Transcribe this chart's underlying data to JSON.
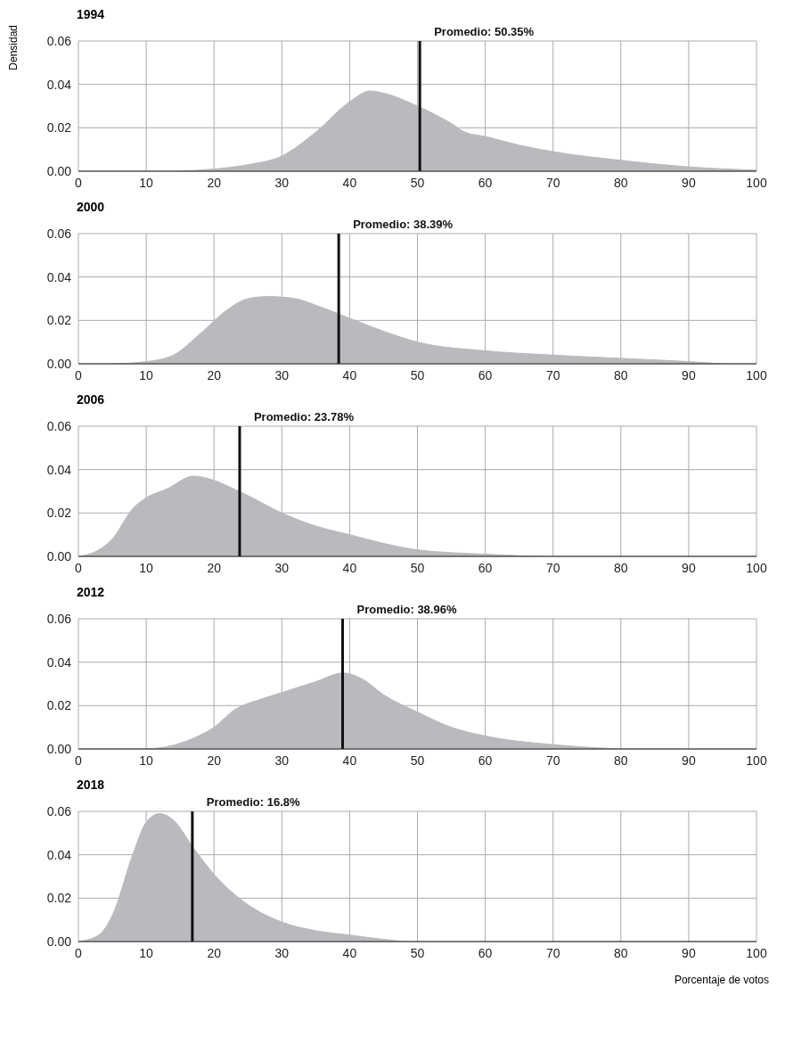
{
  "chart_data": [
    {
      "type": "area",
      "title": "1994",
      "ylabel": "Densidad",
      "color": "#b9babe",
      "grid": true,
      "xlim": [
        0,
        100
      ],
      "xticks": [
        0,
        10,
        20,
        30,
        40,
        50,
        60,
        70,
        80,
        90,
        100
      ],
      "ylim": [
        0,
        0.06
      ],
      "yticks": [
        {
          "value": 0,
          "label": "0.00"
        },
        {
          "value": 0.02,
          "label": "0.02"
        },
        {
          "value": 0.04,
          "label": "0.04"
        },
        {
          "value": 0.06,
          "label": "0.06"
        }
      ],
      "x": [
        15,
        20,
        25,
        30,
        35,
        40,
        43,
        45,
        50,
        55,
        57,
        60,
        65,
        70,
        80,
        90,
        100
      ],
      "values": [
        0,
        0.001,
        0.003,
        0.007,
        0.018,
        0.032,
        0.037,
        0.036,
        0.03,
        0.022,
        0.018,
        0.016,
        0.012,
        0.009,
        0.005,
        0.002,
        0.0005
      ],
      "ref_lines": [
        {
          "axis": "x",
          "value": 50.35,
          "label": "Promedio: 50.35%",
          "color": "#111111"
        }
      ]
    },
    {
      "type": "area",
      "title": "2000",
      "color": "#b9babe",
      "grid": true,
      "xlim": [
        0,
        100
      ],
      "xticks": [
        0,
        10,
        20,
        30,
        40,
        50,
        60,
        70,
        80,
        90,
        100
      ],
      "ylim": [
        0,
        0.06
      ],
      "yticks": [
        {
          "value": 0,
          "label": "0.00"
        },
        {
          "value": 0.02,
          "label": "0.02"
        },
        {
          "value": 0.04,
          "label": "0.04"
        },
        {
          "value": 0.06,
          "label": "0.06"
        }
      ],
      "x": [
        5,
        10,
        14,
        18,
        22,
        25,
        28,
        32,
        35,
        40,
        45,
        50,
        60,
        70,
        80,
        90,
        95
      ],
      "values": [
        0,
        0.001,
        0.004,
        0.014,
        0.025,
        0.03,
        0.031,
        0.03,
        0.027,
        0.021,
        0.015,
        0.01,
        0.006,
        0.004,
        0.0025,
        0.001,
        0
      ],
      "ref_lines": [
        {
          "axis": "x",
          "value": 38.39,
          "label": "Promedio: 38.39%",
          "color": "#111111"
        }
      ]
    },
    {
      "type": "area",
      "title": "2006",
      "color": "#b9babe",
      "grid": true,
      "xlim": [
        0,
        100
      ],
      "xticks": [
        0,
        10,
        20,
        30,
        40,
        50,
        60,
        70,
        80,
        90,
        100
      ],
      "ylim": [
        0,
        0.06
      ],
      "yticks": [
        {
          "value": 0,
          "label": "0.00"
        },
        {
          "value": 0.02,
          "label": "0.02"
        },
        {
          "value": 0.04,
          "label": "0.04"
        },
        {
          "value": 0.06,
          "label": "0.06"
        }
      ],
      "x": [
        0,
        3,
        5,
        8,
        10,
        13,
        17,
        20,
        23,
        25,
        30,
        35,
        40,
        45,
        50,
        60,
        68
      ],
      "values": [
        0,
        0.003,
        0.008,
        0.022,
        0.027,
        0.031,
        0.037,
        0.035,
        0.031,
        0.028,
        0.02,
        0.014,
        0.01,
        0.006,
        0.003,
        0.001,
        0
      ],
      "ref_lines": [
        {
          "axis": "x",
          "value": 23.78,
          "label": "Promedio: 23.78%",
          "color": "#111111"
        }
      ]
    },
    {
      "type": "area",
      "title": "2012",
      "color": "#b9babe",
      "grid": true,
      "xlim": [
        0,
        100
      ],
      "xticks": [
        0,
        10,
        20,
        30,
        40,
        50,
        60,
        70,
        80,
        90,
        100
      ],
      "ylim": [
        0,
        0.06
      ],
      "yticks": [
        {
          "value": 0,
          "label": "0.00"
        },
        {
          "value": 0.02,
          "label": "0.02"
        },
        {
          "value": 0.04,
          "label": "0.04"
        },
        {
          "value": 0.06,
          "label": "0.06"
        }
      ],
      "x": [
        10,
        13,
        17,
        20,
        23,
        27,
        30,
        35,
        39,
        42,
        45,
        50,
        55,
        60,
        70,
        80
      ],
      "values": [
        0,
        0.001,
        0.005,
        0.01,
        0.018,
        0.023,
        0.026,
        0.031,
        0.035,
        0.032,
        0.025,
        0.017,
        0.01,
        0.006,
        0.002,
        0
      ],
      "ref_lines": [
        {
          "axis": "x",
          "value": 38.96,
          "label": "Promedio: 38.96%",
          "color": "#111111"
        }
      ]
    },
    {
      "type": "area",
      "title": "2018",
      "xlabel": "Porcentaje de votos",
      "color": "#b9babe",
      "grid": true,
      "xlim": [
        0,
        100
      ],
      "xticks": [
        0,
        10,
        20,
        30,
        40,
        50,
        60,
        70,
        80,
        90,
        100
      ],
      "ylim": [
        0,
        0.06
      ],
      "yticks": [
        {
          "value": 0,
          "label": "0.00"
        },
        {
          "value": 0.02,
          "label": "0.02"
        },
        {
          "value": 0.04,
          "label": "0.04"
        },
        {
          "value": 0.06,
          "label": "0.06"
        }
      ],
      "x": [
        0,
        3,
        5,
        8,
        10,
        12,
        14,
        17,
        20,
        25,
        30,
        35,
        40,
        45,
        48
      ],
      "values": [
        0,
        0.003,
        0.012,
        0.04,
        0.055,
        0.059,
        0.056,
        0.043,
        0.031,
        0.017,
        0.009,
        0.005,
        0.003,
        0.001,
        0
      ],
      "ref_lines": [
        {
          "axis": "x",
          "value": 16.8,
          "label": "Promedio: 16.8%",
          "color": "#111111"
        }
      ]
    }
  ]
}
